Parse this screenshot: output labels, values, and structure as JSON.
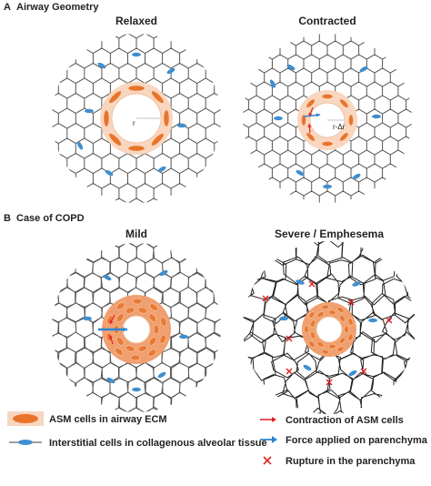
{
  "panel_a": {
    "label": "A",
    "title": "Airway Geometry",
    "relaxed": {
      "title": "Relaxed",
      "radius_label": "r"
    },
    "contracted": {
      "title": "Contracted",
      "radius_label": "r-Δr"
    }
  },
  "panel_b": {
    "label": "B",
    "title": "Case of COPD",
    "mild": {
      "title": "Mild"
    },
    "severe": {
      "title": "Severe / Emphesema"
    }
  },
  "legend": {
    "items": [
      "ASM cells in airway ECM",
      "Interstitial cells in collagenous alveolar tissue",
      "Contraction of ASM cells",
      "Force applied on parenchyma",
      "Rupture in the parenchyma"
    ]
  }
}
